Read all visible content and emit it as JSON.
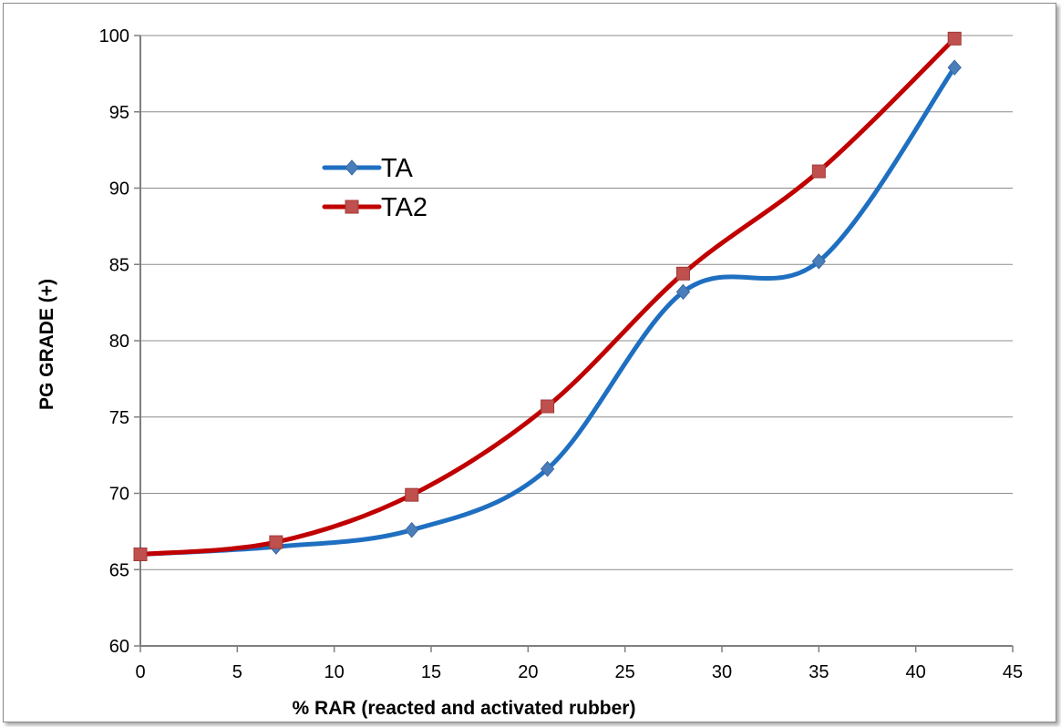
{
  "chart_data": {
    "type": "line",
    "smooth": true,
    "xlabel": "% RAR (reacted and activated rubber)",
    "ylabel": "PG GRADE (+)",
    "xlim": [
      0,
      45
    ],
    "ylim": [
      60,
      100
    ],
    "x_ticks": [
      0,
      5,
      10,
      15,
      20,
      25,
      30,
      35,
      40,
      45
    ],
    "y_ticks": [
      60,
      65,
      70,
      75,
      80,
      85,
      90,
      95,
      100
    ],
    "grid": "horizontal",
    "legend_position": "upper-left",
    "series": [
      {
        "name": "TA",
        "color": "#1f6fc1",
        "marker": "diamond",
        "marker_color": "#4a7ebb",
        "points": [
          [
            0,
            66
          ],
          [
            7,
            66.5
          ],
          [
            14,
            67.6
          ],
          [
            21,
            71.6
          ],
          [
            28,
            83.2
          ],
          [
            35,
            85.2
          ],
          [
            42,
            97.9
          ]
        ]
      },
      {
        "name": "TA2",
        "color": "#c00000",
        "marker": "square",
        "marker_color": "#c0504d",
        "points": [
          [
            0,
            66
          ],
          [
            7,
            66.8
          ],
          [
            14,
            69.9
          ],
          [
            21,
            75.7
          ],
          [
            28,
            84.4
          ],
          [
            35,
            91.1
          ],
          [
            42,
            99.8
          ]
        ]
      }
    ]
  }
}
